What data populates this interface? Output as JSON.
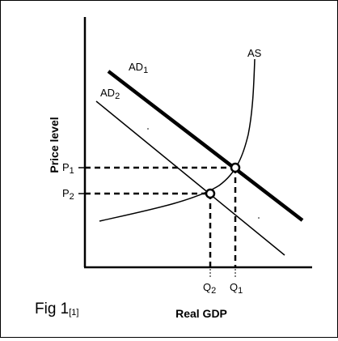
{
  "diagram": {
    "axes": {
      "y_label": "Price level",
      "x_label": "Real GDP"
    },
    "curves": {
      "as_label": "AS",
      "ad1_label": "AD",
      "ad1_sub": "1",
      "ad2_label": "AD",
      "ad2_sub": "2"
    },
    "levels": {
      "p1_label": "P",
      "p1_sub": "1",
      "p2_label": "P",
      "p2_sub": "2",
      "q1_label": "Q",
      "q1_sub": "1",
      "q2_label": "Q",
      "q2_sub": "2"
    },
    "caption": {
      "text": "Fig 1",
      "ref": "[1]"
    }
  }
}
